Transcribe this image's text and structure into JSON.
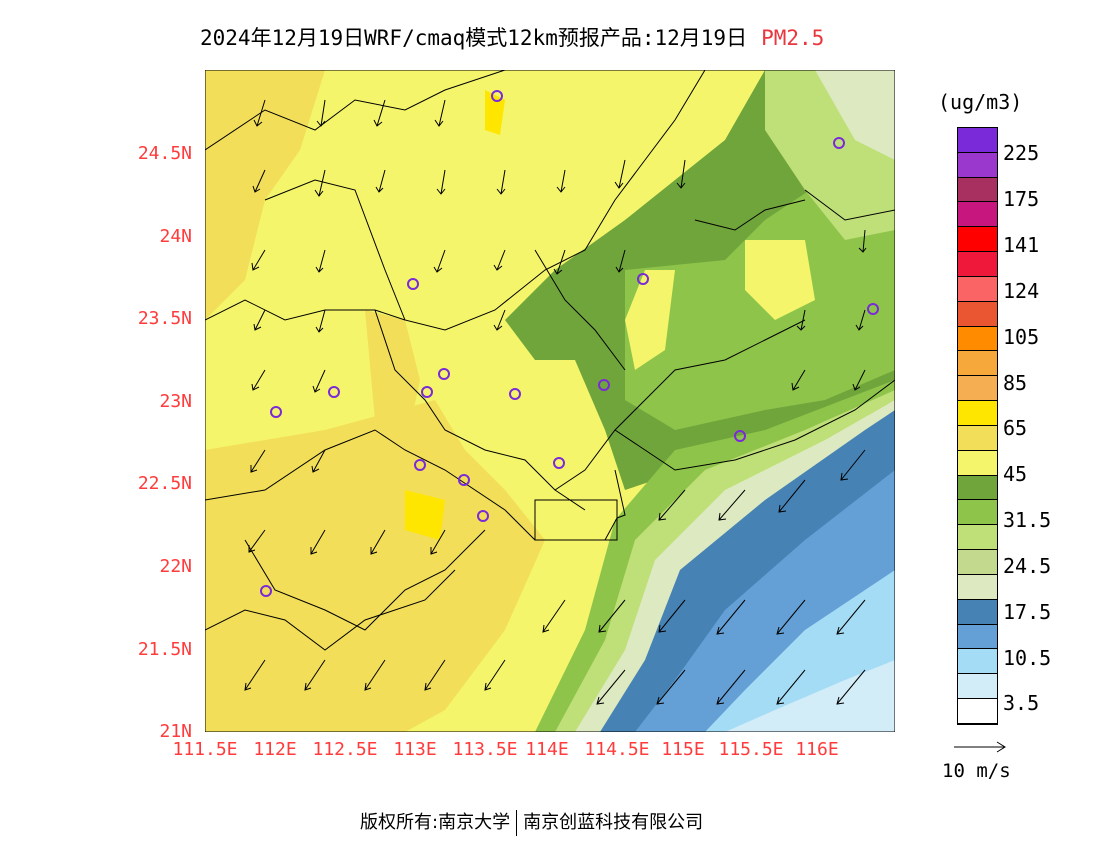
{
  "title": {
    "main": "2024年12月19日WRF/cmaq模式12km预报产品:12月19日",
    "pollutant": "PM2.5"
  },
  "colorbar": {
    "unit": "(ug/m3)",
    "colors": [
      "#7a2ad8",
      "#9a37cc",
      "#a83060",
      "#c7177f",
      "#ff0000",
      "#f0183a",
      "#fa6464",
      "#ea5532",
      "#ff8c00",
      "#f7a83a",
      "#f6ae52",
      "#ffe600",
      "#f2de58",
      "#f4f56b",
      "#6fa53b",
      "#8ec449",
      "#bfdf78",
      "#c3d98e",
      "#dde9c1",
      "#4682b4",
      "#64a0d6",
      "#a5dcf5",
      "#d2ecf8",
      "#ffffff"
    ],
    "labels": [
      "225",
      "175",
      "141",
      "124",
      "105",
      "85",
      "65",
      "45",
      "31.5",
      "24.5",
      "17.5",
      "10.5",
      "3.5"
    ]
  },
  "y_ticks": [
    "24.5N",
    "24N",
    "23.5N",
    "23N",
    "22.5N",
    "22N",
    "21.5N",
    "21N"
  ],
  "x_ticks": [
    "111.5E",
    "112E",
    "112.5E",
    "113E",
    "113.5E",
    "114E",
    "114.5E",
    "115E",
    "115.5E",
    "116E"
  ],
  "wind_scale": {
    "label": "10 m/s"
  },
  "footer": {
    "left": "版权所有:南京大学",
    "right": "南京创蓝科技有限公司"
  }
}
